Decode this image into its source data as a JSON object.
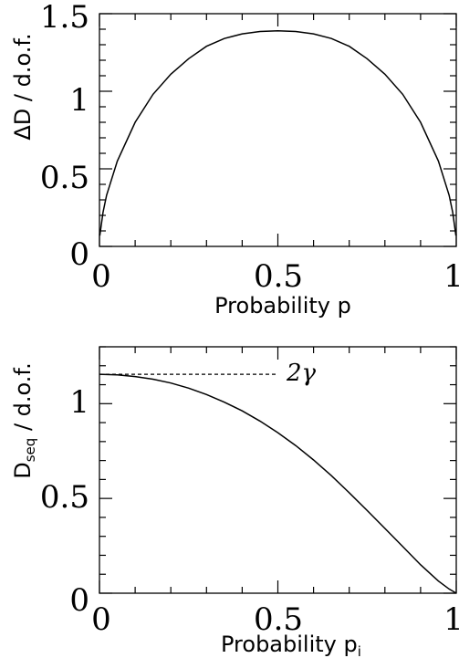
{
  "chart_data": [
    {
      "type": "line",
      "xlabel_main": "Probability p",
      "ylabel_parts": [
        "ΔD",
        " / d.o.f."
      ],
      "xlim": [
        0,
        1
      ],
      "ylim": [
        0,
        1.5
      ],
      "x_tick_labels": [
        "0",
        "0.5",
        "1"
      ],
      "y_tick_labels": [
        "0",
        "0.5",
        "1",
        "1.5"
      ],
      "x_ticks": [
        0,
        0.5,
        1
      ],
      "y_ticks": [
        0,
        0.5,
        1,
        1.5
      ],
      "grid": false,
      "series": [
        {
          "x": [
            0.001,
            0.01,
            0.02,
            0.05,
            0.1,
            0.15,
            0.2,
            0.25,
            0.3,
            0.35,
            0.4,
            0.45,
            0.5,
            0.55,
            0.6,
            0.65,
            0.7,
            0.75,
            0.8,
            0.85,
            0.9,
            0.95,
            0.98,
            0.99,
            0.999
          ],
          "y": [
            0.07,
            0.22,
            0.33,
            0.55,
            0.8,
            0.98,
            1.11,
            1.21,
            1.29,
            1.34,
            1.37,
            1.385,
            1.39,
            1.385,
            1.37,
            1.34,
            1.29,
            1.21,
            1.11,
            0.98,
            0.8,
            0.55,
            0.33,
            0.22,
            0.07
          ]
        }
      ]
    },
    {
      "type": "line",
      "xlabel_main": "Probability p",
      "xlabel_sub": "i",
      "ylabel_main": "D",
      "ylabel_sub": "seq",
      "ylabel_rest": " / d.o.f.",
      "xlim": [
        0,
        1
      ],
      "ylim": [
        0,
        1.3
      ],
      "x_tick_labels": [
        "0",
        "0.5",
        "1"
      ],
      "y_tick_labels": [
        "0",
        "0.5",
        "1"
      ],
      "x_ticks": [
        0,
        0.5,
        1
      ],
      "y_ticks": [
        0,
        0.5,
        1
      ],
      "grid": false,
      "series": [
        {
          "x": [
            0,
            0.05,
            0.1,
            0.15,
            0.2,
            0.25,
            0.3,
            0.35,
            0.4,
            0.45,
            0.5,
            0.55,
            0.6,
            0.65,
            0.7,
            0.75,
            0.8,
            0.85,
            0.9,
            0.95,
            0.98,
            1.0
          ],
          "y": [
            1.155,
            1.152,
            1.143,
            1.129,
            1.109,
            1.082,
            1.048,
            1.008,
            0.962,
            0.908,
            0.847,
            0.779,
            0.703,
            0.62,
            0.53,
            0.437,
            0.342,
            0.246,
            0.15,
            0.064,
            0.022,
            0.0
          ]
        }
      ],
      "annotation": {
        "text": "2γ",
        "line_x": [
          0,
          0.5
        ],
        "line_y": 1.155,
        "line_style": "dashed"
      }
    }
  ]
}
